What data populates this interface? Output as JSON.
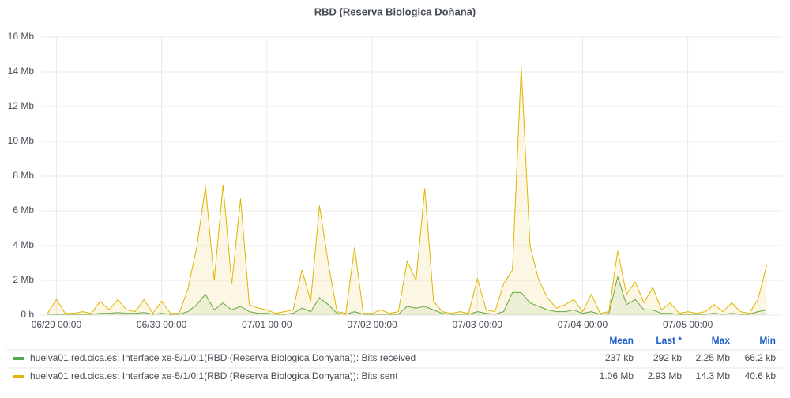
{
  "chart_data": {
    "type": "line",
    "title": "RBD (Reserva Biologica Doñana)",
    "x": [
      "06/28 22:00",
      "06/29 00:00",
      "06/29 02:00",
      "06/29 04:00",
      "06/29 06:00",
      "06/29 08:00",
      "06/29 10:00",
      "06/29 12:00",
      "06/29 14:00",
      "06/29 16:00",
      "06/29 18:00",
      "06/29 20:00",
      "06/29 22:00",
      "06/30 00:00",
      "06/30 02:00",
      "06/30 04:00",
      "06/30 06:00",
      "06/30 08:00",
      "06/30 10:00",
      "06/30 12:00",
      "06/30 14:00",
      "06/30 16:00",
      "06/30 18:00",
      "06/30 20:00",
      "06/30 22:00",
      "07/01 00:00",
      "07/01 02:00",
      "07/01 04:00",
      "07/01 06:00",
      "07/01 08:00",
      "07/01 10:00",
      "07/01 12:00",
      "07/01 14:00",
      "07/01 16:00",
      "07/01 18:00",
      "07/01 20:00",
      "07/01 22:00",
      "07/02 00:00",
      "07/02 02:00",
      "07/02 04:00",
      "07/02 06:00",
      "07/02 08:00",
      "07/02 10:00",
      "07/02 12:00",
      "07/02 14:00",
      "07/02 16:00",
      "07/02 18:00",
      "07/02 20:00",
      "07/02 22:00",
      "07/03 00:00",
      "07/03 02:00",
      "07/03 04:00",
      "07/03 06:00",
      "07/03 08:00",
      "07/03 10:00",
      "07/03 12:00",
      "07/03 14:00",
      "07/03 16:00",
      "07/03 18:00",
      "07/03 20:00",
      "07/03 22:00",
      "07/04 00:00",
      "07/04 02:00",
      "07/04 04:00",
      "07/04 06:00",
      "07/04 08:00",
      "07/04 10:00",
      "07/04 12:00",
      "07/04 14:00",
      "07/04 16:00",
      "07/04 18:00",
      "07/04 20:00",
      "07/04 22:00",
      "07/05 00:00",
      "07/05 02:00",
      "07/05 04:00",
      "07/05 06:00",
      "07/05 08:00",
      "07/05 10:00",
      "07/05 12:00",
      "07/05 14:00",
      "07/05 16:00",
      "07/05 18:00"
    ],
    "series": [
      {
        "name": "huelva01.red.cica.es: Interface xe-5/1/0:1(RBD (Reserva Biologica Donyana)): Bits received",
        "color": "#56a64b",
        "values": [
          0.05,
          0.05,
          0.05,
          0.05,
          0.05,
          0.05,
          0.1,
          0.1,
          0.15,
          0.1,
          0.1,
          0.15,
          0.05,
          0.1,
          0.05,
          0.05,
          0.2,
          0.6,
          1.2,
          0.3,
          0.7,
          0.3,
          0.5,
          0.2,
          0.1,
          0.1,
          0.05,
          0.05,
          0.1,
          0.4,
          0.2,
          1.0,
          0.6,
          0.1,
          0.05,
          0.2,
          0.05,
          0.05,
          0.05,
          0.05,
          0.05,
          0.5,
          0.4,
          0.5,
          0.3,
          0.1,
          0.05,
          0.05,
          0.05,
          0.2,
          0.1,
          0.05,
          0.2,
          1.3,
          1.3,
          0.7,
          0.5,
          0.3,
          0.2,
          0.2,
          0.3,
          0.1,
          0.2,
          0.05,
          0.1,
          2.2,
          0.6,
          0.9,
          0.3,
          0.3,
          0.1,
          0.1,
          0.05,
          0.05,
          0.05,
          0.05,
          0.1,
          0.05,
          0.1,
          0.05,
          0.05,
          0.2,
          0.3
        ]
      },
      {
        "name": "huelva01.red.cica.es: Interface xe-5/1/0:1(RBD (Reserva Biologica Donyana)): Bits sent",
        "color": "#e0b400",
        "values": [
          0.1,
          0.9,
          0.1,
          0.1,
          0.2,
          0.1,
          0.8,
          0.3,
          0.9,
          0.3,
          0.2,
          0.9,
          0.1,
          0.8,
          0.1,
          0.1,
          1.5,
          3.9,
          7.4,
          2.0,
          7.5,
          1.8,
          6.7,
          0.6,
          0.4,
          0.3,
          0.1,
          0.2,
          0.3,
          2.6,
          0.8,
          6.3,
          3.0,
          0.2,
          0.1,
          3.9,
          0.1,
          0.1,
          0.3,
          0.1,
          0.2,
          3.1,
          2.0,
          7.3,
          0.8,
          0.2,
          0.1,
          0.2,
          0.1,
          2.1,
          0.3,
          0.2,
          1.8,
          2.6,
          14.3,
          4.0,
          2.0,
          1.0,
          0.4,
          0.6,
          0.9,
          0.2,
          1.2,
          0.1,
          0.2,
          3.7,
          1.2,
          1.9,
          0.7,
          1.6,
          0.3,
          0.7,
          0.1,
          0.2,
          0.1,
          0.2,
          0.6,
          0.2,
          0.7,
          0.2,
          0.1,
          0.9,
          2.9
        ]
      }
    ],
    "xlim": [
      "06/28 20:30",
      "07/05 21:30"
    ],
    "xticks": [
      "06/29 00:00",
      "06/30 00:00",
      "07/01 00:00",
      "07/02 00:00",
      "07/03 00:00",
      "07/04 00:00",
      "07/05 00:00"
    ],
    "ylim": [
      0,
      16
    ],
    "yticks": [
      {
        "value": 0,
        "label": "0 b"
      },
      {
        "value": 2,
        "label": "2 Mb"
      },
      {
        "value": 4,
        "label": "4 Mb"
      },
      {
        "value": 6,
        "label": "6 Mb"
      },
      {
        "value": 8,
        "label": "8 Mb"
      },
      {
        "value": 10,
        "label": "10 Mb"
      },
      {
        "value": 12,
        "label": "12 Mb"
      },
      {
        "value": 14,
        "label": "14 Mb"
      },
      {
        "value": 16,
        "label": "16 Mb"
      }
    ],
    "grid": true,
    "legend": {
      "columns": [
        "Mean",
        "Last *",
        "Max",
        "Min"
      ],
      "rows": [
        [
          "237 kb",
          "292 kb",
          "2.25 Mb",
          "66.2 kb"
        ],
        [
          "1.06 Mb",
          "2.93 Mb",
          "14.3 Mb",
          "40.6 kb"
        ]
      ]
    }
  }
}
